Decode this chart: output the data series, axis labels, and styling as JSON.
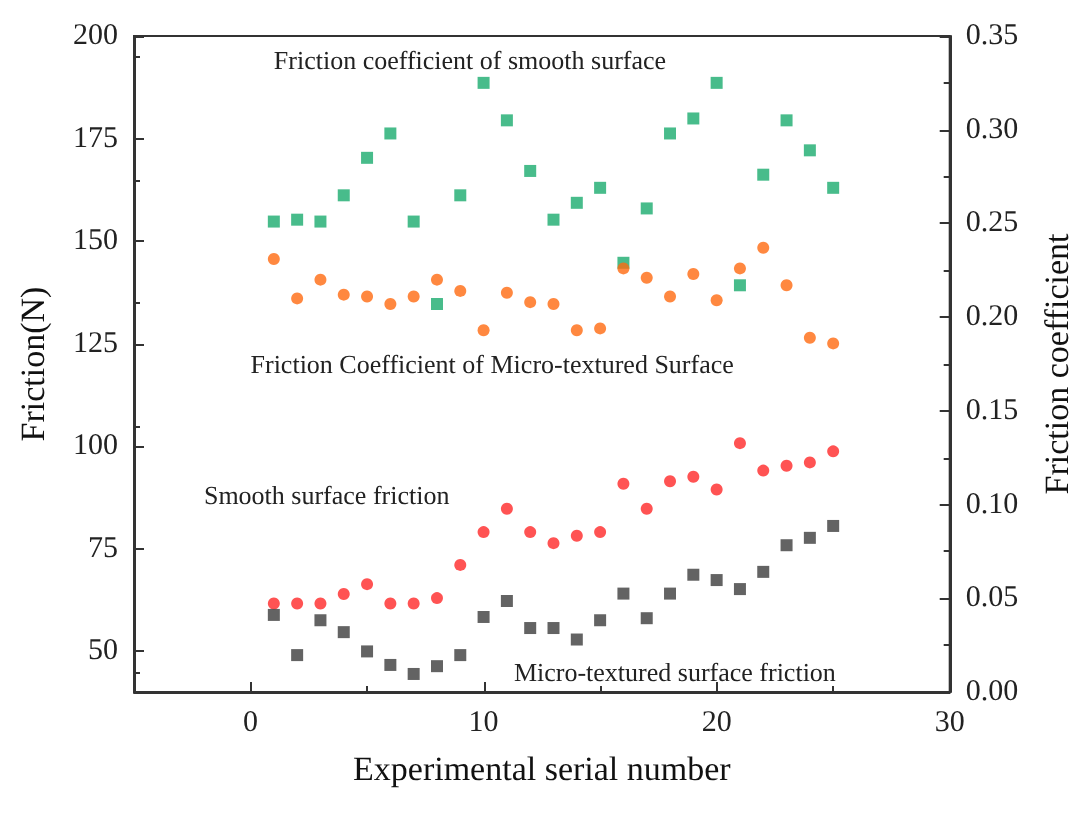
{
  "chart_data": {
    "type": "scatter",
    "xlabel": "Experimental serial number",
    "ylabel": "Friction(N)",
    "y2label": "Friction coefficient",
    "x": [
      1,
      2,
      3,
      4,
      5,
      6,
      7,
      8,
      9,
      10,
      11,
      12,
      13,
      14,
      15,
      16,
      17,
      18,
      19,
      20,
      21,
      22,
      23,
      24,
      25
    ],
    "xlim": [
      -5,
      30
    ],
    "xticks": [
      0,
      10,
      20,
      30
    ],
    "ylim": [
      40,
      200
    ],
    "yticks": [
      50,
      75,
      100,
      125,
      150,
      175,
      200
    ],
    "y2lim": [
      0,
      0.35
    ],
    "y2ticks": [
      {
        "value": 0,
        "label": "0.00"
      },
      0.05,
      {
        "value": 0.1,
        "label": "0.10"
      },
      0.15,
      {
        "value": 0.2,
        "label": "0.20"
      },
      0.25,
      {
        "value": 0.3,
        "label": "0.30"
      },
      0.35
    ],
    "grid": false,
    "legend": false,
    "series": [
      {
        "name": "Friction coefficient of smooth surface",
        "color": "#1aab6e",
        "marker": "square",
        "axis": "y2",
        "values": [
          0.251,
          0.252,
          0.251,
          0.265,
          0.285,
          0.298,
          0.251,
          0.207,
          0.265,
          0.325,
          0.305,
          0.278,
          0.252,
          0.261,
          0.269,
          0.229,
          0.258,
          0.298,
          0.306,
          0.325,
          0.217,
          0.276,
          0.305,
          0.289,
          0.269
        ]
      },
      {
        "name": "Friction Coefficient of Micro-textured Surface",
        "color": "#ff6a10",
        "marker": "circle",
        "axis": "y2",
        "values": [
          0.231,
          0.21,
          0.22,
          0.212,
          0.211,
          0.207,
          0.211,
          0.22,
          0.214,
          0.193,
          0.213,
          0.208,
          0.207,
          0.193,
          0.194,
          0.226,
          0.221,
          0.211,
          0.223,
          0.209,
          0.226,
          0.237,
          0.217,
          0.189,
          0.186
        ]
      },
      {
        "name": "Smooth surface friction",
        "color": "#ff2828",
        "marker": "circle",
        "values": [
          61.6,
          61.6,
          61.6,
          63.9,
          66.3,
          61.6,
          61.6,
          62.9,
          71.0,
          79.0,
          84.7,
          79.0,
          76.3,
          78.1,
          79.0,
          90.8,
          84.7,
          91.4,
          92.5,
          89.4,
          100.7,
          94.0,
          95.2,
          96.0,
          98.7
        ]
      },
      {
        "name": "Micro-textured surface friction",
        "color": "#3c3c3c",
        "marker": "square",
        "values": [
          58.8,
          49.0,
          57.5,
          54.6,
          49.9,
          46.6,
          44.4,
          46.3,
          49.0,
          58.3,
          62.2,
          55.6,
          55.6,
          52.8,
          57.5,
          64.0,
          58.0,
          64.0,
          68.6,
          67.3,
          65.1,
          69.3,
          75.8,
          77.6,
          80.5
        ]
      }
    ]
  }
}
